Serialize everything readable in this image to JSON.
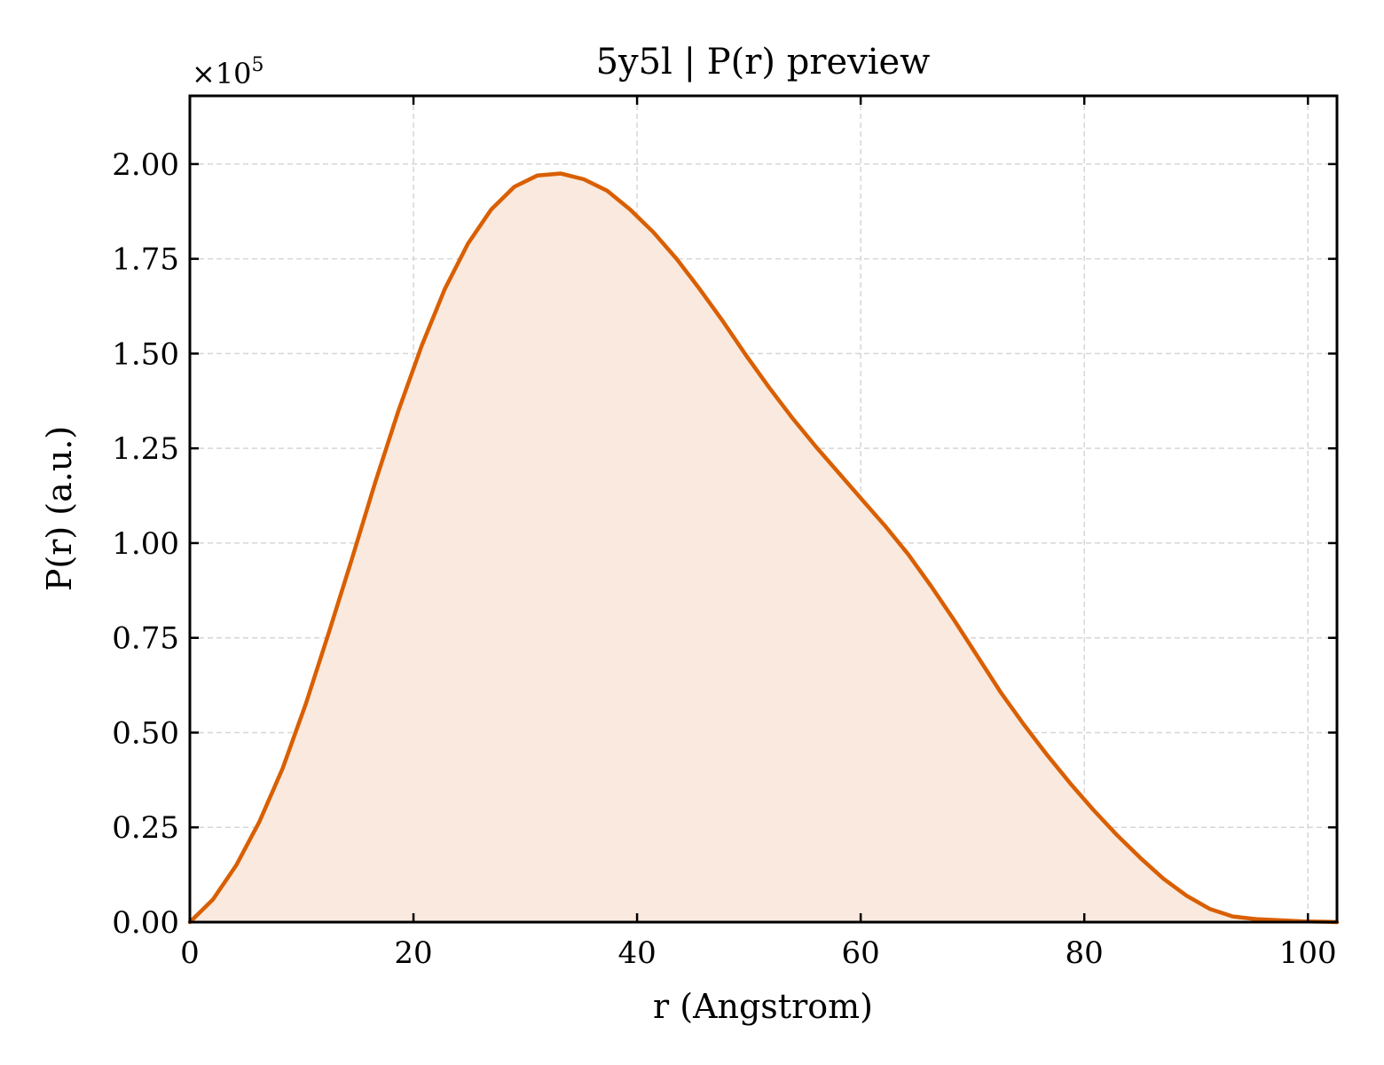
{
  "chart_data": {
    "type": "area",
    "title": "5y5l | P(r) preview",
    "xlabel": "r (Angstrom)",
    "ylabel": "P(r) (a.u.)",
    "y_multiplier_label": "×10",
    "y_multiplier_exponent": "5",
    "xlim": [
      0,
      102.6
    ],
    "ylim": [
      0,
      2.18
    ],
    "x_ticks": [
      0,
      20,
      40,
      60,
      80,
      100
    ],
    "x_tick_labels": [
      "0",
      "20",
      "40",
      "60",
      "80",
      "100"
    ],
    "y_ticks": [
      0,
      0.25,
      0.5,
      0.75,
      1.0,
      1.25,
      1.5,
      1.75,
      2.0
    ],
    "y_tick_labels": [
      "0.00",
      "0.25",
      "0.50",
      "0.75",
      "1.00",
      "1.25",
      "1.50",
      "1.75",
      "2.00"
    ],
    "grid": true,
    "line_color": "#d95f02",
    "fill_color": "#f9e9de",
    "x": [
      0,
      2.07,
      4.15,
      6.22,
      8.29,
      10.36,
      12.44,
      14.51,
      16.58,
      18.66,
      20.73,
      22.8,
      24.87,
      26.95,
      29.02,
      31.09,
      33.17,
      35.24,
      37.31,
      39.38,
      41.46,
      43.53,
      45.6,
      47.68,
      49.75,
      51.82,
      53.89,
      55.97,
      58.04,
      60.11,
      62.19,
      64.26,
      66.33,
      68.4,
      70.48,
      72.55,
      74.62,
      76.7,
      78.77,
      80.84,
      82.91,
      84.99,
      87.06,
      89.13,
      91.21,
      93.28,
      95.35,
      97.42,
      99.5,
      101.57,
      102.6
    ],
    "y": [
      0.0,
      0.06,
      0.15,
      0.265,
      0.405,
      0.575,
      0.765,
      0.96,
      1.16,
      1.35,
      1.52,
      1.67,
      1.79,
      1.88,
      1.94,
      1.97,
      1.975,
      1.96,
      1.93,
      1.88,
      1.82,
      1.75,
      1.67,
      1.585,
      1.495,
      1.41,
      1.33,
      1.255,
      1.185,
      1.115,
      1.045,
      0.97,
      0.885,
      0.795,
      0.7,
      0.605,
      0.52,
      0.44,
      0.365,
      0.295,
      0.23,
      0.17,
      0.115,
      0.07,
      0.035,
      0.015,
      0.008,
      0.005,
      0.002,
      0.001,
      0.0
    ]
  }
}
